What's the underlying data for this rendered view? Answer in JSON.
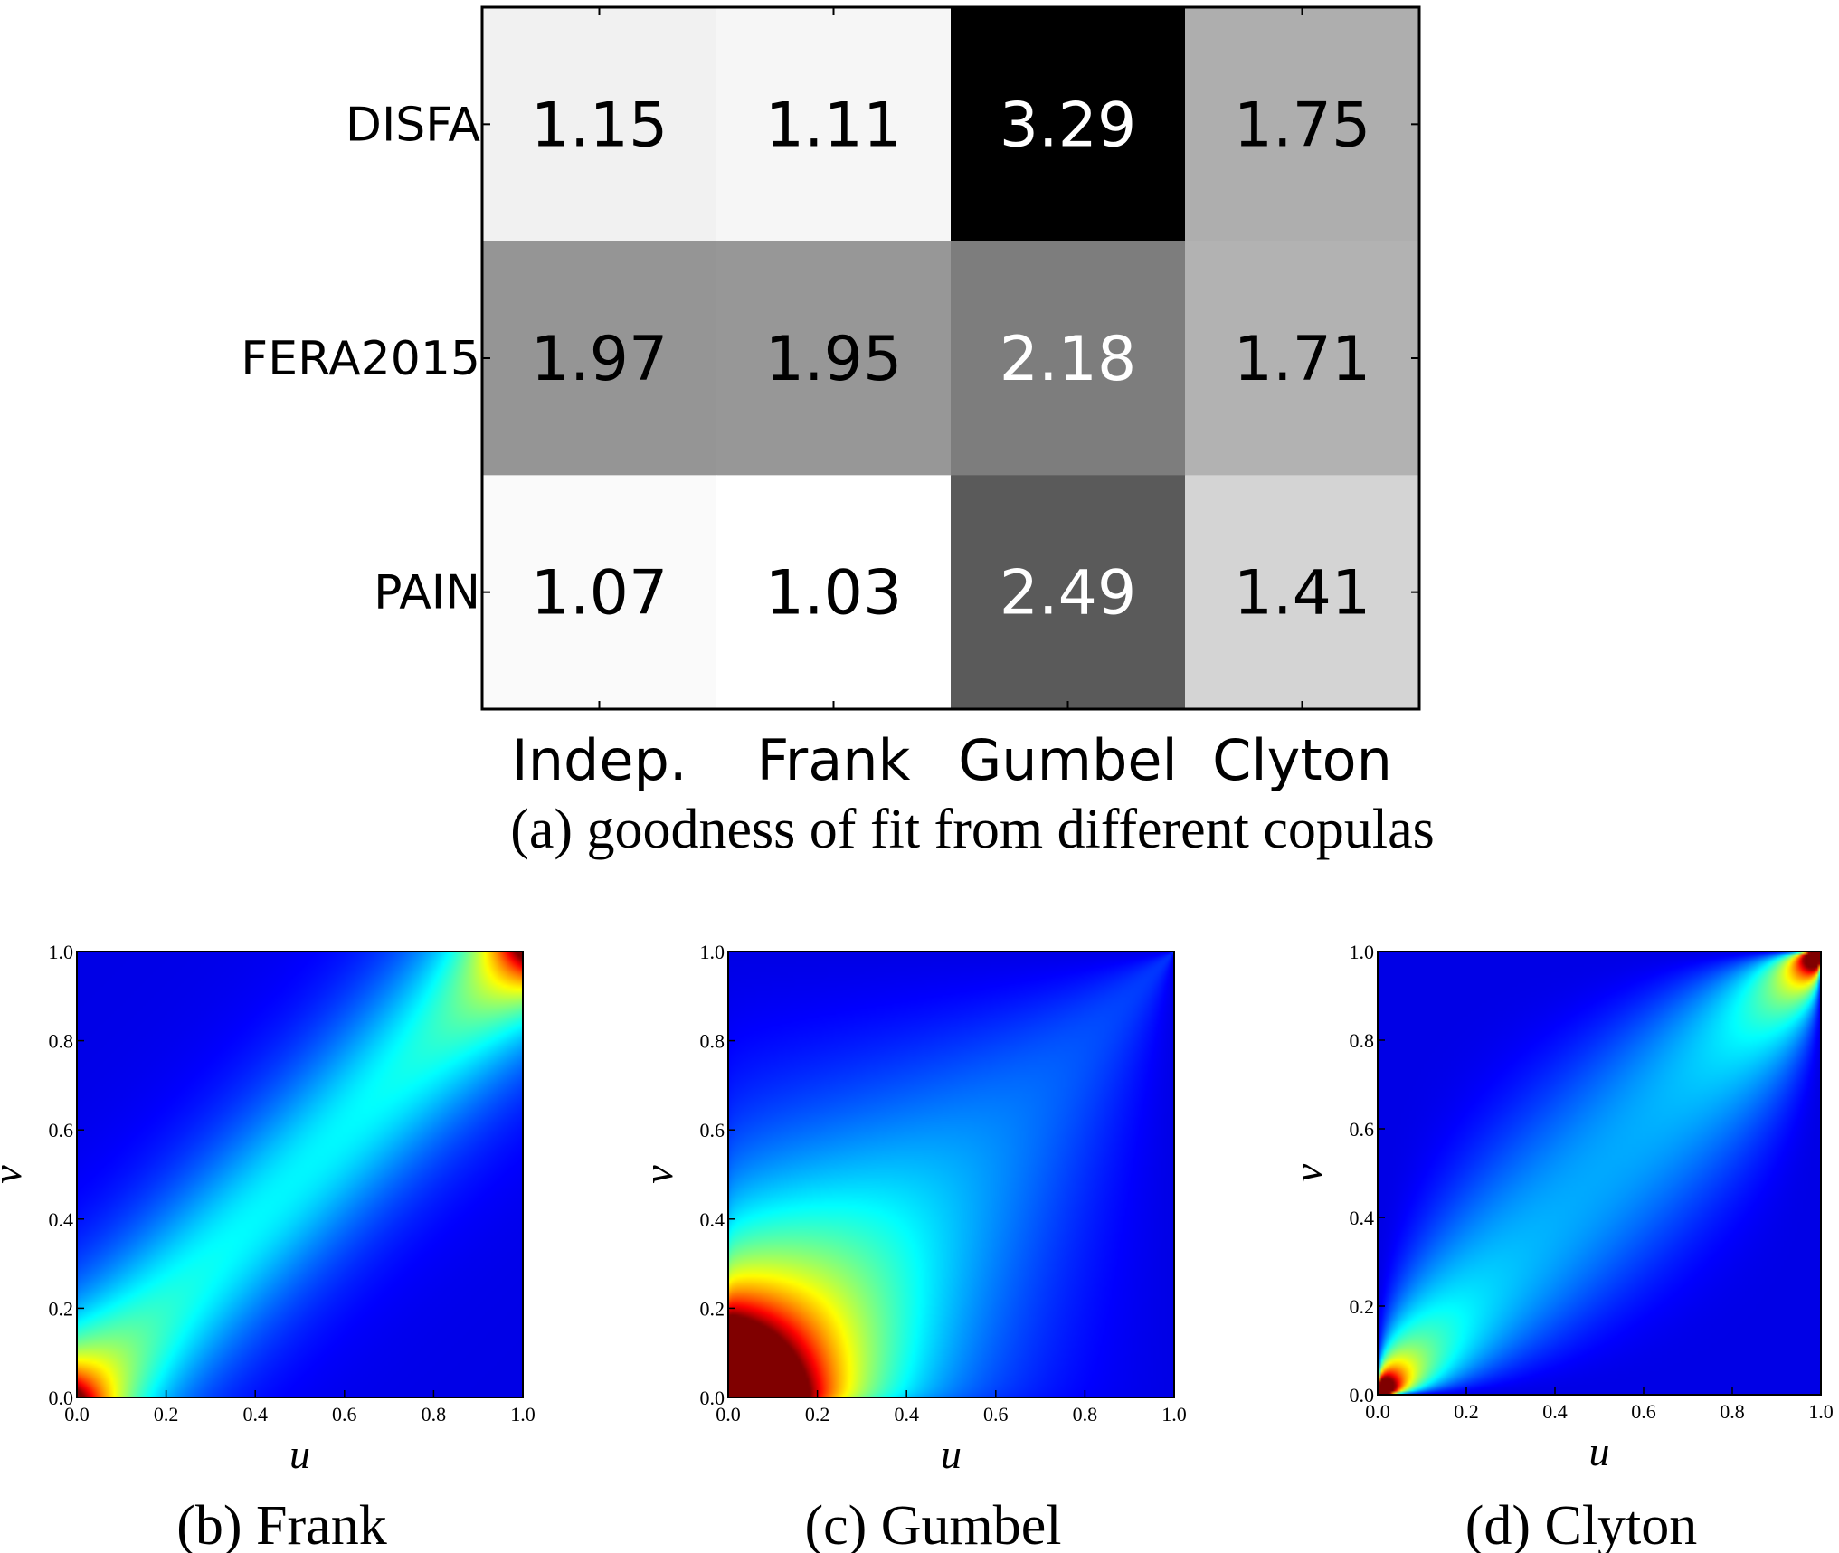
{
  "chart_data": [
    {
      "type": "heatmap",
      "caption": "(a) goodness of fit from different copulas",
      "rows": [
        "DISFA",
        "FERA2015",
        "PAIN"
      ],
      "columns": [
        "Indep.",
        "Frank",
        "Gumbel",
        "Clyton"
      ],
      "values": [
        [
          1.15,
          1.11,
          3.29,
          1.75
        ],
        [
          1.97,
          1.95,
          2.18,
          1.71
        ],
        [
          1.07,
          1.03,
          2.49,
          1.41
        ]
      ],
      "colormap": "gray_r",
      "grid": false
    },
    {
      "type": "heatmap",
      "caption": "(b) Frank",
      "copula": "frank",
      "xlabel": "u",
      "ylabel": "v",
      "xlim": [
        0.0,
        1.0
      ],
      "ylim": [
        0.0,
        1.0
      ],
      "xticks": [
        "0.0",
        "0.2",
        "0.4",
        "0.6",
        "0.8",
        "1.0"
      ],
      "yticks": [
        "0.0",
        "0.2",
        "0.4",
        "0.6",
        "0.8",
        "1.0"
      ],
      "colormap": "jet"
    },
    {
      "type": "heatmap",
      "caption": "(c) Gumbel",
      "copula": "gumbel",
      "xlabel": "u",
      "ylabel": "v",
      "xlim": [
        0.0,
        1.0
      ],
      "ylim": [
        0.0,
        1.0
      ],
      "xticks": [
        "0.0",
        "0.2",
        "0.4",
        "0.6",
        "0.8",
        "1.0"
      ],
      "yticks": [
        "0.0",
        "0.2",
        "0.4",
        "0.6",
        "0.8",
        "1.0"
      ],
      "colormap": "jet"
    },
    {
      "type": "heatmap",
      "caption": "(d) Clyton",
      "copula": "clayton",
      "xlabel": "u",
      "ylabel": "v",
      "xlim": [
        0.0,
        1.0
      ],
      "ylim": [
        0.0,
        1.0
      ],
      "xticks": [
        "0.0",
        "0.2",
        "0.4",
        "0.6",
        "0.8",
        "1.0"
      ],
      "yticks": [
        "0.0",
        "0.2",
        "0.4",
        "0.6",
        "0.8",
        "1.0"
      ],
      "colormap": "jet"
    }
  ]
}
